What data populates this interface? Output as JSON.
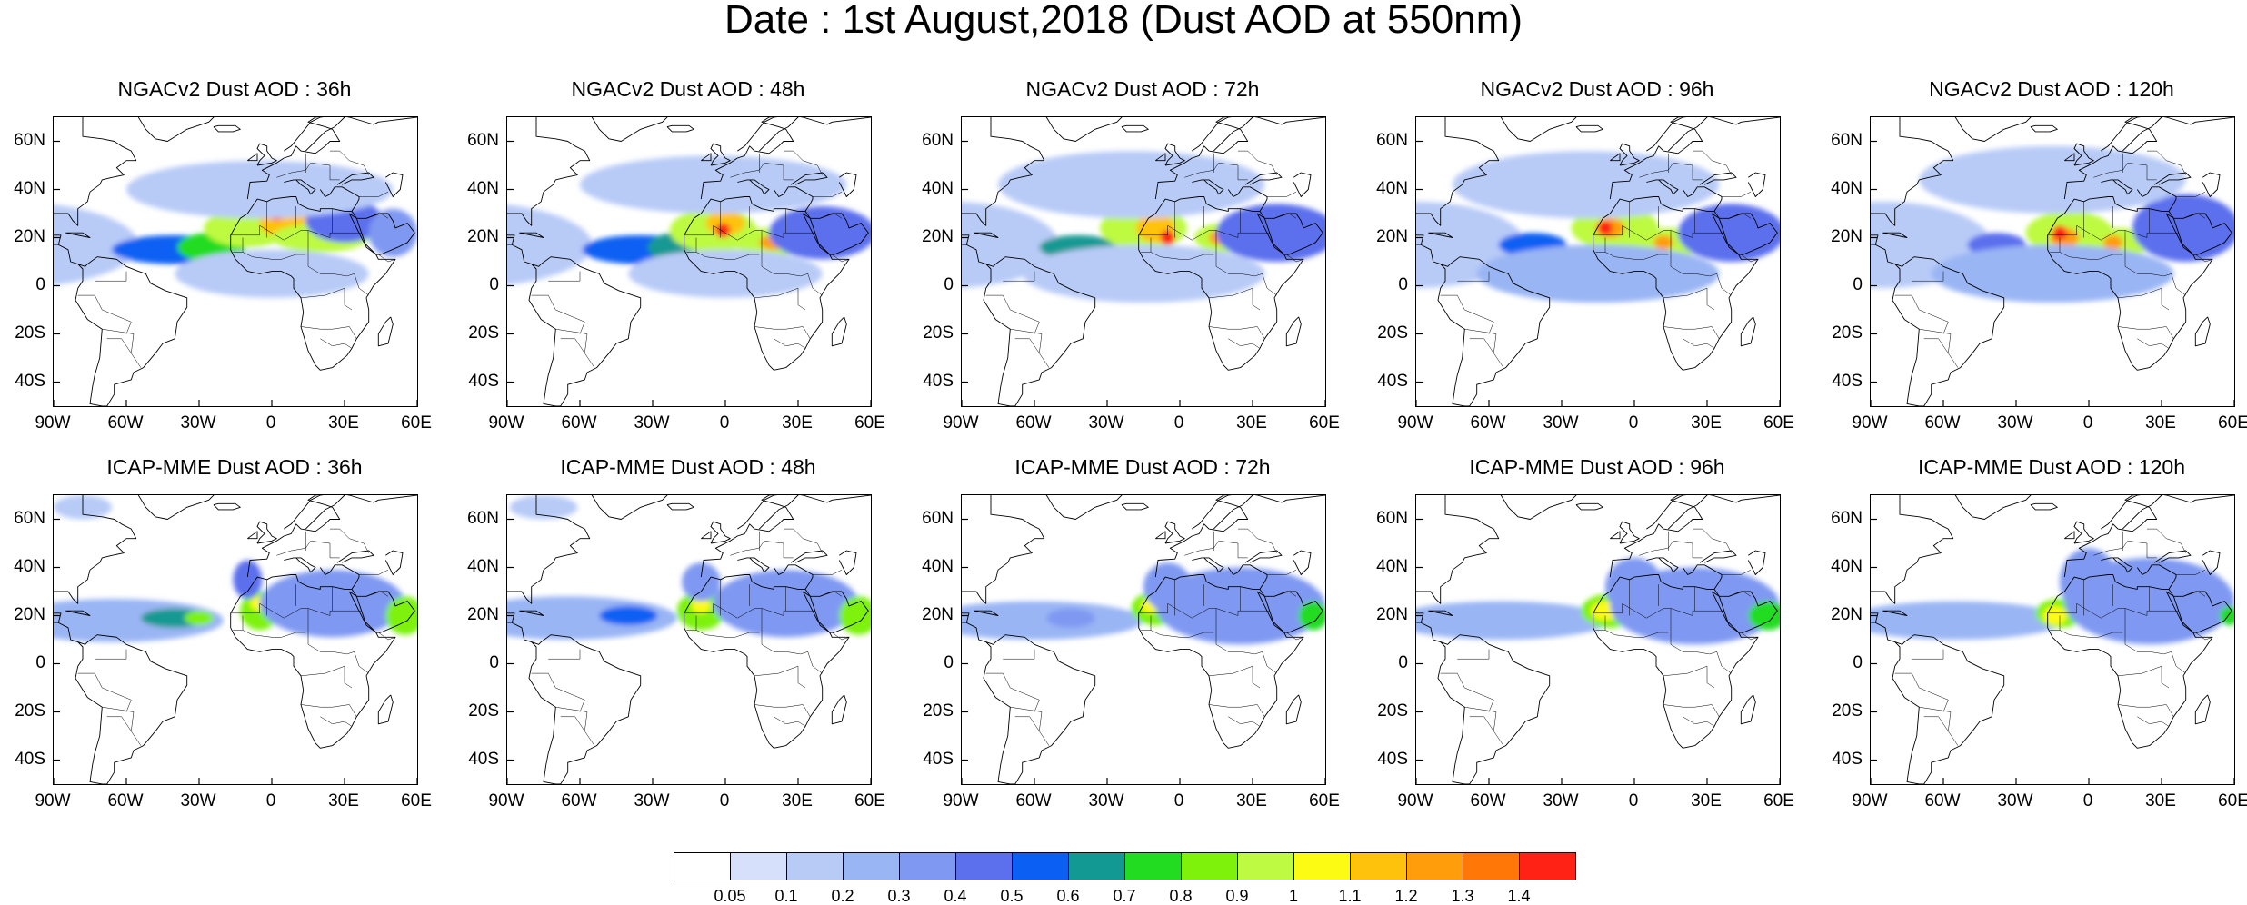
{
  "title": "Date : 1st August,2018 (Dust AOD at 550nm)",
  "lat_ticks": [
    "60N",
    "40N",
    "20N",
    "0",
    "20S",
    "40S"
  ],
  "lon_ticks": [
    "90W",
    "60W",
    "30W",
    "0",
    "30E",
    "60E"
  ],
  "panels": [
    {
      "title": "NGACv2 Dust AOD : 36h",
      "model": "NGACv2",
      "lead": "36h"
    },
    {
      "title": "NGACv2 Dust AOD : 48h",
      "model": "NGACv2",
      "lead": "48h"
    },
    {
      "title": "NGACv2 Dust AOD : 72h",
      "model": "NGACv2",
      "lead": "72h"
    },
    {
      "title": "NGACv2 Dust AOD : 96h",
      "model": "NGACv2",
      "lead": "96h"
    },
    {
      "title": "NGACv2 Dust AOD : 120h",
      "model": "NGACv2",
      "lead": "120h"
    },
    {
      "title": "ICAP-MME Dust AOD : 36h",
      "model": "ICAP-MME",
      "lead": "36h"
    },
    {
      "title": "ICAP-MME Dust AOD : 48h",
      "model": "ICAP-MME",
      "lead": "48h"
    },
    {
      "title": "ICAP-MME Dust AOD : 72h",
      "model": "ICAP-MME",
      "lead": "72h"
    },
    {
      "title": "ICAP-MME Dust AOD : 96h",
      "model": "ICAP-MME",
      "lead": "96h"
    },
    {
      "title": "ICAP-MME Dust AOD : 120h",
      "model": "ICAP-MME",
      "lead": "120h"
    }
  ],
  "colorbar": {
    "labels": [
      "0.05",
      "0.1",
      "0.2",
      "0.3",
      "0.4",
      "0.5",
      "0.6",
      "0.7",
      "0.8",
      "0.9",
      "1",
      "1.1",
      "1.2",
      "1.3",
      "1.4"
    ],
    "colors": [
      "#ffffff",
      "#d6e0fb",
      "#b8cbf7",
      "#9ab5f4",
      "#7f99f2",
      "#5c70ee",
      "#0b60f3",
      "#139993",
      "#21dc21",
      "#7ef20b",
      "#bdfa41",
      "#fbfb14",
      "#ffc20c",
      "#ff9d0a",
      "#ff7807",
      "#ff2215"
    ]
  },
  "chart_data": {
    "type": "heatmap",
    "variable": "Dust AOD at 550nm",
    "domain": {
      "lon": [
        -90,
        60
      ],
      "lat": [
        -50,
        70
      ]
    },
    "panels": [
      {
        "title": "NGACv2 Dust AOD : 36h",
        "blobs": [
          [
            -110,
            17,
            55,
            18,
            0.14
          ],
          [
            -40,
            15,
            26,
            6,
            0.55
          ],
          [
            -25,
            16,
            14,
            6,
            0.7
          ],
          [
            -10,
            24,
            18,
            8,
            0.9
          ],
          [
            5,
            26,
            10,
            6,
            1.1
          ],
          [
            2,
            30,
            3,
            3,
            1.4
          ],
          [
            20,
            20,
            20,
            6,
            0.9
          ],
          [
            30,
            27,
            16,
            9,
            0.45
          ],
          [
            50,
            22,
            10,
            10,
            0.3
          ],
          [
            -5,
            40,
            55,
            12,
            0.16
          ],
          [
            0,
            5,
            40,
            10,
            0.15
          ]
        ]
      },
      {
        "title": "NGACv2 Dust AOD : 48h",
        "blobs": [
          [
            -110,
            17,
            55,
            18,
            0.14
          ],
          [
            -35,
            15,
            24,
            6,
            0.55
          ],
          [
            -20,
            16,
            12,
            6,
            0.65
          ],
          [
            -5,
            23,
            18,
            9,
            0.9
          ],
          [
            0,
            26,
            8,
            5,
            1.1
          ],
          [
            -1,
            23,
            3,
            3,
            1.4
          ],
          [
            18,
            18,
            14,
            6,
            0.9
          ],
          [
            20,
            18,
            6,
            3,
            1.2
          ],
          [
            40,
            22,
            22,
            11,
            0.4
          ],
          [
            -5,
            42,
            55,
            12,
            0.16
          ],
          [
            0,
            5,
            40,
            10,
            0.15
          ]
        ]
      },
      {
        "title": "NGACv2 Dust AOD : 72h",
        "blobs": [
          [
            -95,
            17,
            45,
            18,
            0.14
          ],
          [
            -42,
            16,
            16,
            5,
            0.6
          ],
          [
            -15,
            24,
            18,
            9,
            0.9
          ],
          [
            -10,
            24,
            8,
            6,
            1.1
          ],
          [
            -5,
            20,
            3,
            3,
            1.4
          ],
          [
            18,
            20,
            12,
            6,
            0.9
          ],
          [
            16,
            20,
            4,
            3,
            1.2
          ],
          [
            40,
            22,
            25,
            12,
            0.4
          ],
          [
            -20,
            42,
            55,
            14,
            0.16
          ],
          [
            -15,
            5,
            50,
            12,
            0.18
          ]
        ]
      },
      {
        "title": "NGACv2 Dust AOD : 96h",
        "blobs": [
          [
            -90,
            17,
            45,
            18,
            0.14
          ],
          [
            -42,
            17,
            14,
            5,
            0.5
          ],
          [
            -8,
            24,
            18,
            9,
            0.9
          ],
          [
            -10,
            24,
            6,
            4,
            1.2
          ],
          [
            -12,
            24,
            3,
            3,
            1.4
          ],
          [
            15,
            18,
            14,
            6,
            0.9
          ],
          [
            12,
            18,
            4,
            3,
            1.2
          ],
          [
            40,
            22,
            22,
            12,
            0.4
          ],
          [
            -20,
            42,
            55,
            14,
            0.16
          ],
          [
            -15,
            5,
            50,
            12,
            0.2
          ]
        ]
      },
      {
        "title": "NGACv2 Dust AOD : 120h",
        "blobs": [
          [
            -85,
            17,
            45,
            18,
            0.14
          ],
          [
            -38,
            17,
            12,
            5,
            0.45
          ],
          [
            -8,
            22,
            18,
            9,
            0.9
          ],
          [
            -10,
            20,
            6,
            4,
            1.2
          ],
          [
            -12,
            22,
            3,
            3,
            1.4
          ],
          [
            12,
            18,
            14,
            6,
            0.9
          ],
          [
            10,
            18,
            4,
            3,
            1.2
          ],
          [
            40,
            24,
            22,
            14,
            0.4
          ],
          [
            -15,
            44,
            55,
            14,
            0.16
          ],
          [
            -15,
            5,
            50,
            12,
            0.2
          ]
        ]
      },
      {
        "title": "ICAP-MME Dust AOD : 36h",
        "blobs": [
          [
            -65,
            18,
            45,
            9,
            0.22
          ],
          [
            -40,
            19,
            14,
            4,
            0.6
          ],
          [
            -30,
            19,
            6,
            3,
            0.8
          ],
          [
            -5,
            22,
            8,
            8,
            0.8
          ],
          [
            -5,
            25,
            4,
            3,
            1.0
          ],
          [
            -10,
            35,
            6,
            8,
            0.4
          ],
          [
            25,
            25,
            30,
            14,
            0.3
          ],
          [
            55,
            20,
            8,
            8,
            0.8
          ],
          [
            -78,
            65,
            12,
            5,
            0.12
          ]
        ]
      },
      {
        "title": "ICAP-MME Dust AOD : 48h",
        "blobs": [
          [
            -65,
            19,
            45,
            9,
            0.22
          ],
          [
            -40,
            20,
            12,
            4,
            0.5
          ],
          [
            -10,
            22,
            10,
            8,
            0.8
          ],
          [
            -10,
            24,
            4,
            3,
            1.0
          ],
          [
            -10,
            34,
            8,
            8,
            0.35
          ],
          [
            25,
            25,
            30,
            14,
            0.3
          ],
          [
            55,
            20,
            8,
            8,
            0.8
          ],
          [
            -75,
            65,
            14,
            5,
            0.12
          ]
        ]
      },
      {
        "title": "ICAP-MME Dust AOD : 72h",
        "blobs": [
          [
            -60,
            18,
            45,
            8,
            0.2
          ],
          [
            -45,
            19,
            10,
            4,
            0.35
          ],
          [
            -10,
            23,
            10,
            7,
            0.8
          ],
          [
            -12,
            24,
            4,
            3,
            1.0
          ],
          [
            -5,
            32,
            10,
            10,
            0.3
          ],
          [
            25,
            24,
            35,
            16,
            0.3
          ],
          [
            55,
            20,
            6,
            6,
            0.7
          ]
        ]
      },
      {
        "title": "ICAP-MME Dust AOD : 96h",
        "blobs": [
          [
            -55,
            18,
            45,
            8,
            0.2
          ],
          [
            -10,
            22,
            12,
            7,
            0.8
          ],
          [
            -12,
            22,
            6,
            4,
            1.0
          ],
          [
            0,
            32,
            12,
            12,
            0.3
          ],
          [
            25,
            24,
            35,
            16,
            0.3
          ],
          [
            55,
            20,
            8,
            6,
            0.7
          ]
        ]
      },
      {
        "title": "ICAP-MME Dust AOD : 120h",
        "blobs": [
          [
            -55,
            18,
            45,
            8,
            0.2
          ],
          [
            -12,
            21,
            10,
            6,
            0.8
          ],
          [
            -14,
            20,
            5,
            4,
            1.0
          ],
          [
            0,
            34,
            12,
            14,
            0.3
          ],
          [
            8,
            31,
            4,
            3,
            0.8
          ],
          [
            25,
            26,
            35,
            18,
            0.3
          ],
          [
            58,
            20,
            4,
            4,
            0.7
          ]
        ]
      }
    ]
  }
}
